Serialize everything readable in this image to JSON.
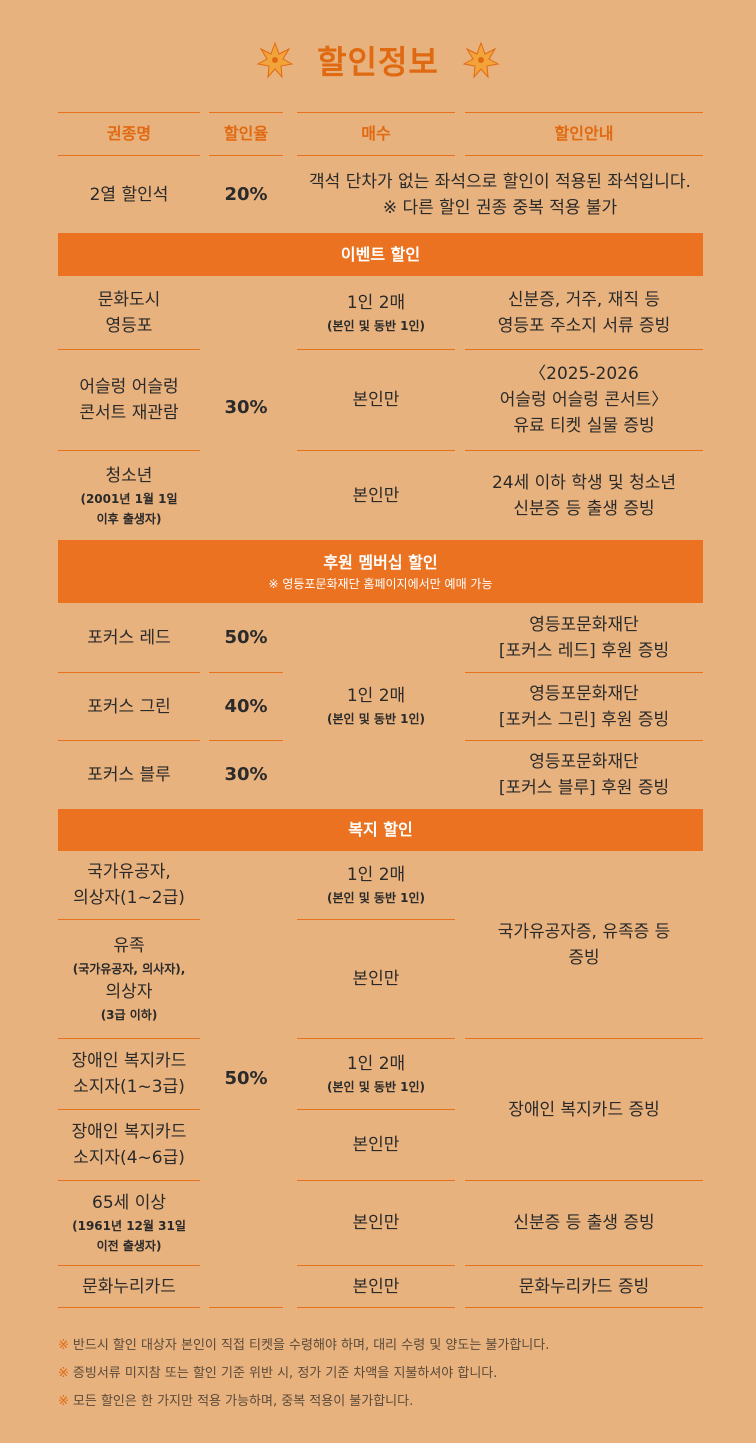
{
  "page": {
    "title": "할인정보",
    "accent": "#E06A12",
    "band_color": "#EA7220",
    "background": "#E8B27E"
  },
  "header": {
    "col_name": "권종명",
    "col_rate": "할인율",
    "col_qty": "매수",
    "col_info": "할인안내"
  },
  "row_2yeol": {
    "name": "2열 할인석",
    "rate": "20%",
    "info_line1": "객석 단차가 없는 좌석으로 할인이 적용된 좌석입니다.",
    "info_line2": "※ 다른 할인 권종 중복 적용 불가"
  },
  "event": {
    "band_title": "이벤트 할인",
    "shared_rate": "30%",
    "rows": [
      {
        "name_line1": "문화도시",
        "name_line2": "영등포",
        "qty": "1인 2매",
        "qty_sub": "(본인 및 동반 1인)",
        "info_line1": "신분증, 거주, 재직 등",
        "info_line2": "영등포 주소지 서류 증빙"
      },
      {
        "name_line1": "어슬렁 어슬렁",
        "name_line2": "콘서트 재관람",
        "qty": "본인만",
        "info_line1": "〈2025-2026",
        "info_line2": "어슬렁 어슬렁 콘서트〉",
        "info_line3": "유료 티켓 실물 증빙"
      },
      {
        "name_line1": "청소년",
        "name_sub1": "(2001년 1월 1일",
        "name_sub2": "이후 출생자)",
        "qty": "본인만",
        "info_line1": "24세 이하 학생 및 청소년",
        "info_line2": "신분증 등 출생 증빙"
      }
    ]
  },
  "member": {
    "band_title": "후원 멤버십 할인",
    "band_note": "※ 영등포문화재단 홈페이지에서만 예매 가능",
    "qty": "1인 2매",
    "qty_sub": "(본인 및 동반 1인)",
    "rows": [
      {
        "name": "포커스 레드",
        "rate": "50%",
        "info_line1": "영등포문화재단",
        "info_line2": "[포커스 레드] 후원 증빙"
      },
      {
        "name": "포커스 그린",
        "rate": "40%",
        "info_line1": "영등포문화재단",
        "info_line2": "[포커스 그린] 후원 증빙"
      },
      {
        "name": "포커스 블루",
        "rate": "30%",
        "info_line1": "영등포문화재단",
        "info_line2": "[포커스 블루] 후원 증빙"
      }
    ]
  },
  "welfare": {
    "band_title": "복지 할인",
    "shared_rate": "50%",
    "info_veteran": "국가유공자증, 유족증 등",
    "info_veteran2": "증빙",
    "info_disabled": "장애인 복지카드 증빙",
    "rows": [
      {
        "name_line1": "국가유공자,",
        "name_line2": "의상자(1~2급)",
        "qty": "1인 2매",
        "qty_sub": "(본인 및 동반 1인)"
      },
      {
        "name_line1": "유족",
        "name_sub1": "(국가유공자, 의사자),",
        "name_line2": "의상자",
        "name_sub2": "(3급 이하)",
        "qty": "본인만"
      },
      {
        "name_line1": "장애인 복지카드",
        "name_line2": "소지자(1~3급)",
        "qty": "1인 2매",
        "qty_sub": "(본인 및 동반 1인)"
      },
      {
        "name_line1": "장애인 복지카드",
        "name_line2": "소지자(4~6급)",
        "qty": "본인만"
      },
      {
        "name_line1": "65세 이상",
        "name_sub1": "(1961년 12월 31일",
        "name_sub2": "이전 출생자)",
        "qty": "본인만",
        "info_line1": "신분증 등 출생 증빙"
      },
      {
        "name_line1": "문화누리카드",
        "qty": "본인만",
        "info_line1": "문화누리카드 증빙"
      }
    ]
  },
  "notes": [
    "반드시 할인 대상자 본인이 직접 티켓을 수령해야 하며, 대리 수령 및 양도는 불가합니다.",
    "증빙서류 미지참 또는 할인 기준 위반 시, 정가 기준 차액을 지불하셔야 합니다.",
    "모든 할인은 한 가지만 적용 가능하며, 중복 적용이 불가합니다."
  ],
  "note_bullet": "※",
  "icons": {
    "title_decoration": "maple-leaf-icon"
  }
}
